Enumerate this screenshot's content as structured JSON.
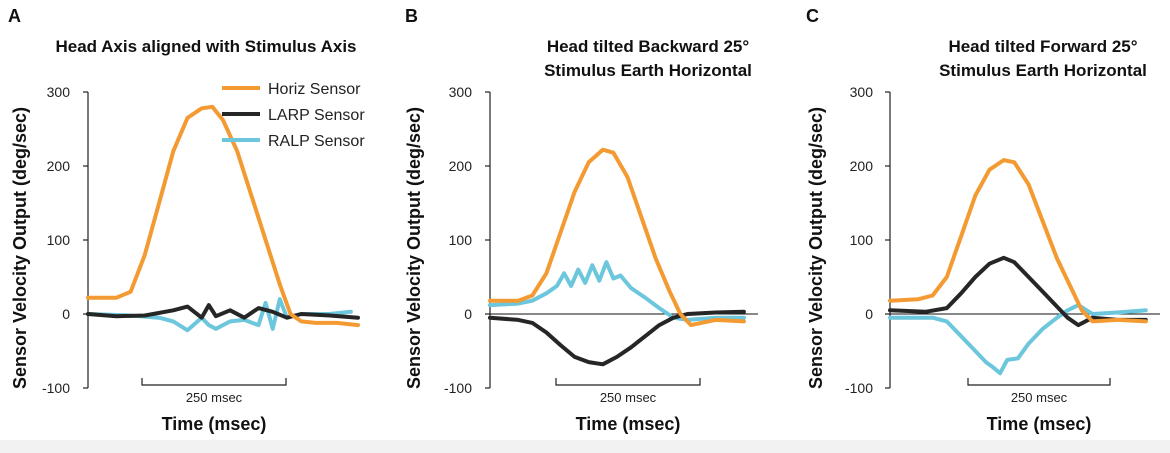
{
  "colors": {
    "horiz": "#f39a32",
    "larp": "#262626",
    "ralp": "#6cc6dc",
    "axis": "#222222"
  },
  "legend": [
    {
      "label": "Horiz Sensor",
      "color": "#f39a32"
    },
    {
      "label": "LARP Sensor",
      "color": "#262626"
    },
    {
      "label": "RALP Sensor",
      "color": "#6cc6dc"
    }
  ],
  "chart_data": [
    {
      "type": "line",
      "letter": "A",
      "title": [
        "Head Axis aligned with Stimulus Axis"
      ],
      "ylabel": "Sensor Velocity Output (deg/sec)",
      "xlabel": "Time (msec)",
      "scale_bar": "250 msec",
      "ylim": [
        -100,
        300
      ],
      "yticks": [
        -100,
        0,
        100,
        200,
        300
      ],
      "zero_line": false,
      "series": [
        {
          "name": "Horiz Sensor",
          "color": "#f39a32",
          "points": [
            [
              0,
              22
            ],
            [
              40,
              22
            ],
            [
              60,
              30
            ],
            [
              80,
              80
            ],
            [
              100,
              150
            ],
            [
              120,
              220
            ],
            [
              140,
              265
            ],
            [
              160,
              278
            ],
            [
              175,
              280
            ],
            [
              190,
              262
            ],
            [
              210,
              220
            ],
            [
              230,
              160
            ],
            [
              250,
              100
            ],
            [
              270,
              40
            ],
            [
              285,
              0
            ],
            [
              300,
              -10
            ],
            [
              320,
              -12
            ],
            [
              350,
              -12
            ],
            [
              380,
              -15
            ]
          ]
        },
        {
          "name": "LARP Sensor",
          "color": "#262626",
          "points": [
            [
              0,
              0
            ],
            [
              40,
              -3
            ],
            [
              80,
              -2
            ],
            [
              120,
              5
            ],
            [
              140,
              10
            ],
            [
              160,
              -5
            ],
            [
              170,
              12
            ],
            [
              180,
              -3
            ],
            [
              200,
              5
            ],
            [
              220,
              -5
            ],
            [
              240,
              8
            ],
            [
              260,
              3
            ],
            [
              280,
              -5
            ],
            [
              300,
              0
            ],
            [
              340,
              -2
            ],
            [
              380,
              -5
            ]
          ]
        },
        {
          "name": "RALP Sensor",
          "color": "#6cc6dc",
          "points": [
            [
              0,
              0
            ],
            [
              60,
              -2
            ],
            [
              100,
              -5
            ],
            [
              120,
              -10
            ],
            [
              140,
              -22
            ],
            [
              160,
              -5
            ],
            [
              170,
              -15
            ],
            [
              180,
              -20
            ],
            [
              200,
              -10
            ],
            [
              220,
              -8
            ],
            [
              240,
              -15
            ],
            [
              250,
              15
            ],
            [
              260,
              -20
            ],
            [
              270,
              20
            ],
            [
              280,
              -5
            ],
            [
              300,
              0
            ],
            [
              340,
              0
            ],
            [
              370,
              3
            ]
          ]
        }
      ]
    },
    {
      "type": "line",
      "letter": "B",
      "title": [
        "Head tilted Backward 25°",
        "Stimulus Earth Horizontal"
      ],
      "ylabel": "Sensor Velocity Output (deg/sec)",
      "xlabel": "Time (msec)",
      "scale_bar": "250 msec",
      "ylim": [
        -100,
        300
      ],
      "yticks": [
        -100,
        0,
        100,
        200,
        300
      ],
      "zero_line": true,
      "series": [
        {
          "name": "Horiz Sensor",
          "color": "#f39a32",
          "points": [
            [
              0,
              18
            ],
            [
              40,
              18
            ],
            [
              60,
              25
            ],
            [
              80,
              55
            ],
            [
              100,
              110
            ],
            [
              120,
              165
            ],
            [
              140,
              205
            ],
            [
              160,
              222
            ],
            [
              175,
              218
            ],
            [
              195,
              185
            ],
            [
              215,
              130
            ],
            [
              235,
              75
            ],
            [
              255,
              30
            ],
            [
              270,
              0
            ],
            [
              285,
              -15
            ],
            [
              320,
              -8
            ],
            [
              360,
              -10
            ]
          ]
        },
        {
          "name": "LARP Sensor",
          "color": "#262626",
          "points": [
            [
              0,
              -5
            ],
            [
              40,
              -8
            ],
            [
              60,
              -12
            ],
            [
              80,
              -25
            ],
            [
              100,
              -42
            ],
            [
              120,
              -58
            ],
            [
              140,
              -65
            ],
            [
              160,
              -68
            ],
            [
              180,
              -58
            ],
            [
              200,
              -45
            ],
            [
              220,
              -30
            ],
            [
              240,
              -15
            ],
            [
              260,
              -5
            ],
            [
              280,
              0
            ],
            [
              320,
              2
            ],
            [
              360,
              3
            ]
          ]
        },
        {
          "name": "RALP Sensor",
          "color": "#6cc6dc",
          "points": [
            [
              0,
              12
            ],
            [
              40,
              14
            ],
            [
              60,
              18
            ],
            [
              80,
              28
            ],
            [
              95,
              38
            ],
            [
              105,
              55
            ],
            [
              115,
              38
            ],
            [
              125,
              60
            ],
            [
              135,
              42
            ],
            [
              145,
              66
            ],
            [
              155,
              45
            ],
            [
              165,
              70
            ],
            [
              175,
              48
            ],
            [
              185,
              52
            ],
            [
              200,
              35
            ],
            [
              220,
              22
            ],
            [
              240,
              8
            ],
            [
              260,
              -5
            ],
            [
              280,
              -8
            ],
            [
              320,
              -5
            ],
            [
              360,
              -5
            ]
          ]
        }
      ]
    },
    {
      "type": "line",
      "letter": "C",
      "title": [
        "Head tilted Forward 25°",
        "Stimulus Earth Horizontal"
      ],
      "ylabel": "Sensor Velocity Output (deg/sec)",
      "xlabel": "Time (msec)",
      "scale_bar": "250 msec",
      "ylim": [
        -100,
        300
      ],
      "yticks": [
        -100,
        0,
        100,
        200,
        300
      ],
      "zero_line": true,
      "series": [
        {
          "name": "Horiz Sensor",
          "color": "#f39a32",
          "points": [
            [
              0,
              18
            ],
            [
              40,
              20
            ],
            [
              60,
              25
            ],
            [
              80,
              50
            ],
            [
              100,
              105
            ],
            [
              120,
              160
            ],
            [
              140,
              195
            ],
            [
              160,
              208
            ],
            [
              175,
              205
            ],
            [
              195,
              175
            ],
            [
              215,
              125
            ],
            [
              235,
              75
            ],
            [
              255,
              35
            ],
            [
              270,
              5
            ],
            [
              285,
              -10
            ],
            [
              320,
              -8
            ],
            [
              360,
              -10
            ]
          ]
        },
        {
          "name": "LARP Sensor",
          "color": "#262626",
          "points": [
            [
              0,
              5
            ],
            [
              50,
              3
            ],
            [
              80,
              8
            ],
            [
              100,
              28
            ],
            [
              120,
              50
            ],
            [
              140,
              68
            ],
            [
              160,
              76
            ],
            [
              175,
              70
            ],
            [
              195,
              50
            ],
            [
              215,
              30
            ],
            [
              235,
              10
            ],
            [
              250,
              -5
            ],
            [
              265,
              -15
            ],
            [
              285,
              -5
            ],
            [
              320,
              -8
            ],
            [
              360,
              -8
            ]
          ]
        },
        {
          "name": "RALP Sensor",
          "color": "#6cc6dc",
          "points": [
            [
              0,
              -5
            ],
            [
              60,
              -5
            ],
            [
              80,
              -10
            ],
            [
              100,
              -30
            ],
            [
              120,
              -50
            ],
            [
              135,
              -65
            ],
            [
              145,
              -72
            ],
            [
              155,
              -80
            ],
            [
              165,
              -62
            ],
            [
              180,
              -60
            ],
            [
              195,
              -40
            ],
            [
              215,
              -20
            ],
            [
              235,
              -5
            ],
            [
              250,
              5
            ],
            [
              265,
              12
            ],
            [
              285,
              0
            ],
            [
              320,
              2
            ],
            [
              360,
              5
            ]
          ]
        }
      ]
    }
  ]
}
